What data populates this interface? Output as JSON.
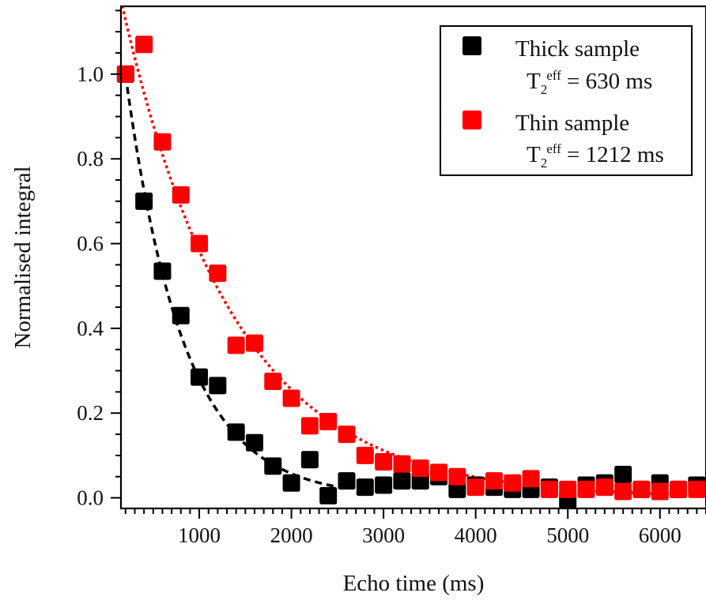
{
  "chart_data": {
    "type": "scatter",
    "xlabel": "Echo time (ms)",
    "ylabel": "Normalised integral",
    "xlim": [
      150,
      6500
    ],
    "ylim": [
      -0.025,
      1.16
    ],
    "x_ticks": [
      1000,
      2000,
      3000,
      4000,
      5000,
      6000
    ],
    "x_tick_labels": [
      "1000",
      "2000",
      "3000",
      "4000",
      "5000",
      "6000"
    ],
    "y_ticks": [
      0.0,
      0.2,
      0.4,
      0.6,
      0.8,
      1.0
    ],
    "y_tick_labels": [
      "0.0",
      "0.2",
      "0.4",
      "0.6",
      "0.8",
      "1.0"
    ],
    "x_minor_step": 100,
    "y_minor_step": 0.05,
    "grid": false,
    "legend_position": "top-right",
    "series": [
      {
        "name": "Thick sample",
        "color": "#000000",
        "marker": "square",
        "fit_label_base": "T",
        "fit_label_sub": "2",
        "fit_label_sup": "eff",
        "fit_label_value": " = 630 ms",
        "fit": {
          "model": "exponential",
          "amplitude": 1.37,
          "T2_ms": 630,
          "line": "dashed",
          "x_range": [
            200,
            2500
          ]
        },
        "x": [
          200,
          400,
          600,
          800,
          1000,
          1200,
          1400,
          1600,
          1800,
          2000,
          2200,
          2400,
          2600,
          2800,
          3000,
          3200,
          3400,
          3600,
          3800,
          4000,
          4200,
          4400,
          4600,
          4800,
          5000,
          5200,
          5400,
          5600,
          5800,
          6000,
          6200,
          6400
        ],
        "y": [
          1.0,
          0.7,
          0.535,
          0.43,
          0.285,
          0.265,
          0.155,
          0.13,
          0.075,
          0.035,
          0.09,
          0.005,
          0.04,
          0.025,
          0.03,
          0.04,
          0.04,
          0.05,
          0.02,
          0.03,
          0.025,
          0.02,
          0.02,
          0.025,
          -0.005,
          0.03,
          0.035,
          0.055,
          0.02,
          0.035,
          0.02,
          0.03
        ]
      },
      {
        "name": "Thin sample",
        "color": "#ff0000",
        "marker": "square",
        "fit_label_base": "T",
        "fit_label_sub": "2",
        "fit_label_sup": "eff",
        "fit_label_value": " = 1212 ms",
        "fit": {
          "model": "exponential",
          "amplitude": 1.33,
          "T2_ms": 1212,
          "line": "dotted",
          "x_range": [
            150,
            6500
          ]
        },
        "x": [
          200,
          400,
          600,
          800,
          1000,
          1200,
          1400,
          1600,
          1800,
          2000,
          2200,
          2400,
          2600,
          2800,
          3000,
          3200,
          3400,
          3600,
          3800,
          4000,
          4200,
          4400,
          4600,
          4800,
          5000,
          5200,
          5400,
          5600,
          5800,
          6000,
          6200,
          6400
        ],
        "y": [
          1.0,
          1.07,
          0.84,
          0.715,
          0.6,
          0.53,
          0.36,
          0.365,
          0.275,
          0.235,
          0.17,
          0.18,
          0.15,
          0.1,
          0.085,
          0.08,
          0.07,
          0.06,
          0.05,
          0.025,
          0.04,
          0.035,
          0.045,
          0.02,
          0.02,
          0.02,
          0.025,
          0.015,
          0.02,
          0.015,
          0.02,
          0.02
        ]
      }
    ]
  }
}
